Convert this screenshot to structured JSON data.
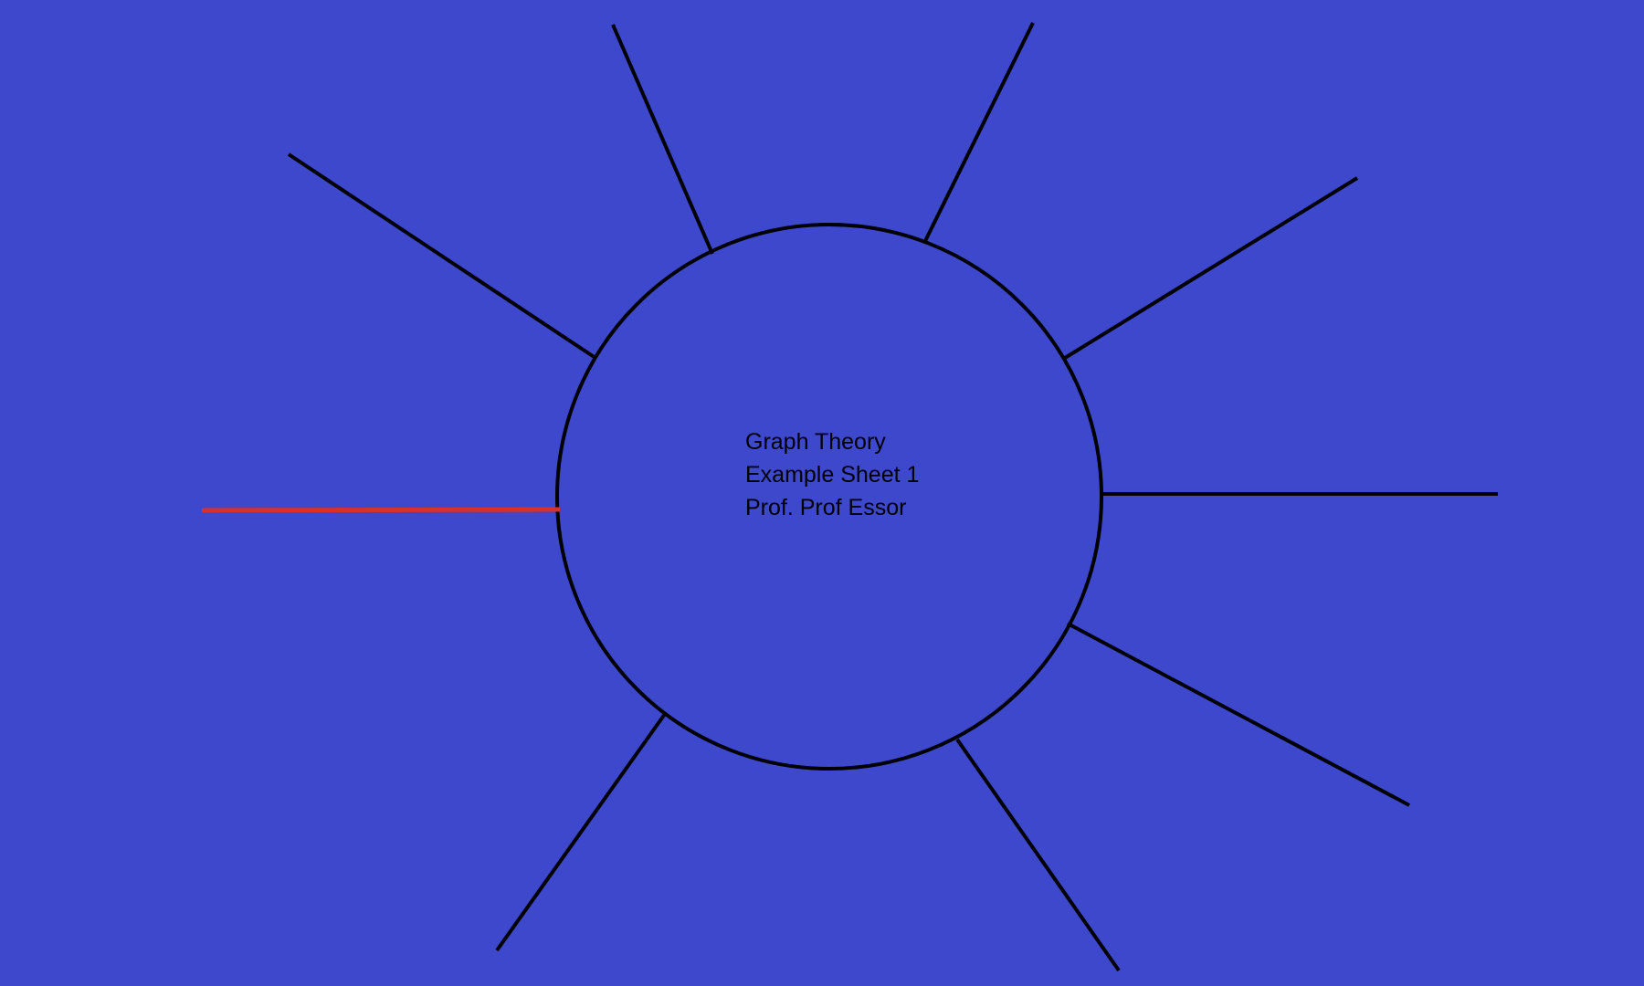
{
  "colors": {
    "background": "#3d48cc",
    "stroke": "#000000",
    "highlight": "#d9302a"
  },
  "center_label": {
    "line1": "Graph Theory",
    "line2": "Example Sheet 1",
    "line3": "Prof. Prof Essor"
  },
  "diagram": {
    "shape": "circle-with-radiating-spokes",
    "spoke_count": 9,
    "highlighted_spoke": "left"
  }
}
